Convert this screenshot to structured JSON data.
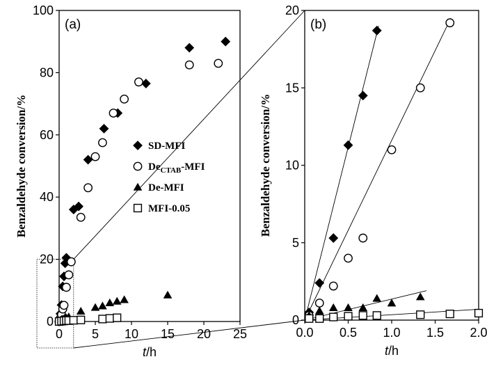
{
  "chart_data": [
    {
      "panel_label": "(a)",
      "type": "scatter",
      "xlabel_italic": "t",
      "xlabel_unit": "/h",
      "ylabel": "Benzaldehyde conversion/%",
      "xlim": [
        0,
        25
      ],
      "ylim": [
        0,
        100
      ],
      "xticks": [
        "0",
        "5",
        "10",
        "15",
        "20",
        "25"
      ],
      "yticks": [
        "0",
        "20",
        "40",
        "60",
        "80",
        "100"
      ],
      "legend_position": "center-right",
      "series": [
        {
          "name": "SD-MFI",
          "name_main": "SD-MFI",
          "name_sub": "",
          "name_tail": "",
          "marker": "filled-diamond",
          "points": [
            [
              0,
              0
            ],
            [
              0.17,
              2.5
            ],
            [
              0.33,
              5.3
            ],
            [
              0.5,
              11.3
            ],
            [
              0.67,
              14.5
            ],
            [
              0.83,
              18.7
            ],
            [
              1.0,
              20.5
            ],
            [
              2.0,
              36
            ],
            [
              2.7,
              37
            ],
            [
              4.0,
              52
            ],
            [
              6.2,
              62
            ],
            [
              8.1,
              67
            ],
            [
              12,
              76.5
            ],
            [
              18,
              88
            ],
            [
              23,
              90
            ]
          ]
        },
        {
          "name": "DeCTAB-MFI",
          "name_main": "De",
          "name_sub": "CTAB",
          "name_tail": "-MFI",
          "marker": "open-circle",
          "points": [
            [
              0,
              0
            ],
            [
              0.17,
              1.0
            ],
            [
              0.33,
              2.2
            ],
            [
              0.5,
              4.0
            ],
            [
              0.67,
              5.2
            ],
            [
              1.0,
              11
            ],
            [
              1.33,
              15
            ],
            [
              1.67,
              19.2
            ],
            [
              3.0,
              33.5
            ],
            [
              4.0,
              43
            ],
            [
              5.0,
              53
            ],
            [
              6.0,
              57.5
            ],
            [
              7.5,
              67
            ],
            [
              9.0,
              71.5
            ],
            [
              11,
              77
            ],
            [
              18,
              82.5
            ],
            [
              22,
              83
            ]
          ]
        },
        {
          "name": "De-MFI",
          "name_main": "De-MFI",
          "name_sub": "",
          "name_tail": "",
          "marker": "filled-triangle",
          "points": [
            [
              0,
              0
            ],
            [
              0.17,
              0.4
            ],
            [
              0.33,
              0.7
            ],
            [
              0.5,
              0.8
            ],
            [
              0.67,
              0.8
            ],
            [
              0.83,
              1.3
            ],
            [
              1.0,
              1.1
            ],
            [
              1.33,
              1.5
            ],
            [
              3,
              3.3
            ],
            [
              5,
              4.5
            ],
            [
              6,
              5
            ],
            [
              7,
              6
            ],
            [
              8,
              6.5
            ],
            [
              9,
              7
            ],
            [
              15,
              8.5
            ]
          ]
        },
        {
          "name": "MFI-0.05",
          "name_main": "MFI-0.05",
          "name_sub": "",
          "name_tail": "",
          "marker": "open-square",
          "points": [
            [
              0,
              0
            ],
            [
              0.33,
              0.1
            ],
            [
              0.67,
              0.2
            ],
            [
              1.0,
              0.3
            ],
            [
              1.33,
              0.3
            ],
            [
              2,
              0.4
            ],
            [
              3,
              0.5
            ],
            [
              6,
              0.8
            ],
            [
              7,
              1.0
            ],
            [
              8,
              1.2
            ]
          ]
        }
      ]
    },
    {
      "panel_label": "(b)",
      "type": "scatter",
      "xlabel_italic": "t",
      "xlabel_unit": "/h",
      "ylabel": "Benzaldehyde conversion/%",
      "xlim": [
        0,
        2.0
      ],
      "ylim": [
        0,
        20
      ],
      "xticks": [
        "0.0",
        "0.5",
        "1.0",
        "1.5",
        "2.0"
      ],
      "yticks": [
        "0",
        "5",
        "10",
        "15",
        "20"
      ],
      "series": [
        {
          "name": "SD-MFI",
          "marker": "filled-diamond",
          "points": [
            [
              0.05,
              0.5
            ],
            [
              0.17,
              2.4
            ],
            [
              0.33,
              5.3
            ],
            [
              0.5,
              11.3
            ],
            [
              0.67,
              14.5
            ],
            [
              0.83,
              18.7
            ]
          ],
          "fit_line": [
            [
              0,
              0
            ],
            [
              0.85,
              19.0
            ]
          ]
        },
        {
          "name": "DeCTAB-MFI",
          "marker": "open-circle",
          "points": [
            [
              0.05,
              0.3
            ],
            [
              0.17,
              1.1
            ],
            [
              0.33,
              2.2
            ],
            [
              0.5,
              4.0
            ],
            [
              0.67,
              5.3
            ],
            [
              1.0,
              11.0
            ],
            [
              1.33,
              15.0
            ],
            [
              1.67,
              19.2
            ]
          ],
          "fit_line": [
            [
              0,
              0
            ],
            [
              1.68,
              19.5
            ]
          ]
        },
        {
          "name": "De-MFI",
          "marker": "filled-triangle",
          "points": [
            [
              0.05,
              0.3
            ],
            [
              0.17,
              0.6
            ],
            [
              0.33,
              0.8
            ],
            [
              0.5,
              0.8
            ],
            [
              0.67,
              0.8
            ],
            [
              0.83,
              1.4
            ],
            [
              1.0,
              1.1
            ],
            [
              1.33,
              1.5
            ]
          ],
          "fit_line": [
            [
              0,
              0
            ],
            [
              1.4,
              1.9
            ]
          ]
        },
        {
          "name": "MFI-0.05",
          "marker": "open-square",
          "points": [
            [
              0.05,
              0.1
            ],
            [
              0.17,
              0.1
            ],
            [
              0.33,
              0.2
            ],
            [
              0.5,
              0.25
            ],
            [
              0.67,
              0.3
            ],
            [
              0.83,
              0.3
            ],
            [
              1.33,
              0.35
            ],
            [
              1.67,
              0.4
            ],
            [
              2.0,
              0.45
            ]
          ],
          "fit_line": [
            [
              0,
              0
            ],
            [
              2.0,
              0.7
            ]
          ]
        }
      ]
    }
  ]
}
